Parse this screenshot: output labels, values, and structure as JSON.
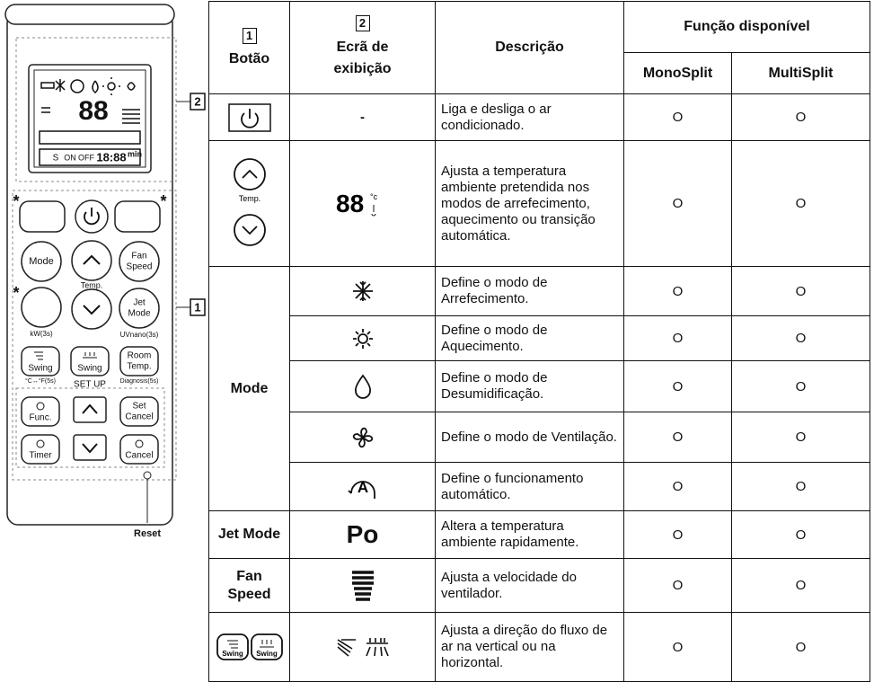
{
  "remote": {
    "callout_display": "2",
    "callout_buttons": "1",
    "asterisk": "*",
    "mode": "Mode",
    "temp": "Temp.",
    "fan_speed": [
      "Fan",
      "Speed"
    ],
    "kw": "kW(3s)",
    "jet_mode": [
      "Jet",
      "Mode"
    ],
    "uvnano": "UVnano(3s)",
    "swing_v": "Swing",
    "swing_h": "Swing",
    "room_temp": [
      "Room",
      "Temp."
    ],
    "celsius": "°C↔°F(5s)",
    "set_up": "SET UP",
    "diagnosis": "Diagnosis(5s)",
    "func": "Func.",
    "set_cancel": [
      "Set",
      "Cancel"
    ],
    "timer": "Timer",
    "cancel": "Cancel",
    "reset": "Reset",
    "lcd": [
      "88",
      "S",
      "ON",
      "OFF",
      "18:88",
      "min"
    ]
  },
  "table": {
    "header": {
      "button_number": "1",
      "button": "Botão",
      "display_number": "2",
      "display": "Ecrã de exibição",
      "description": "Descrição",
      "function": "Função disponível",
      "mono": "MonoSplit",
      "multi": "MultiSplit"
    },
    "rows": [
      {
        "display": "-",
        "description": "Liga e desliga o ar condicionado.",
        "mono": "O",
        "multi": "O"
      },
      {
        "button_label": "Temp.",
        "display": "88",
        "display_unit": "°c",
        "description": "Ajusta a temperatura ambiente pretendida nos modos de arrefecimento, aquecimento ou transição automática.",
        "mono": "O",
        "multi": "O"
      },
      {
        "button": "Mode",
        "description": "Define o modo de Arrefecimento.",
        "mono": "O",
        "multi": "O"
      },
      {
        "description": "Define o modo de Aquecimento.",
        "mono": "O",
        "multi": "O"
      },
      {
        "description": "Define o modo de Desumidificação.",
        "mono": "O",
        "multi": "O"
      },
      {
        "description": "Define o modo de Ventilação.",
        "mono": "O",
        "multi": "O"
      },
      {
        "display": "A",
        "description": "Define o funcionamento automático.",
        "mono": "O",
        "multi": "O"
      },
      {
        "button": "Jet Mode",
        "display": "Po",
        "description": "Altera a temperatura ambiente rapidamente.",
        "mono": "O",
        "multi": "O"
      },
      {
        "button": "Fan Speed",
        "description": "Ajusta a velocidade do ventilador.",
        "mono": "O",
        "multi": "O"
      },
      {
        "button_labels": [
          "Swing",
          "Swing"
        ],
        "description": "Ajusta a direção do fluxo de ar na vertical ou na horizontal.",
        "mono": "O",
        "multi": "O"
      }
    ]
  }
}
